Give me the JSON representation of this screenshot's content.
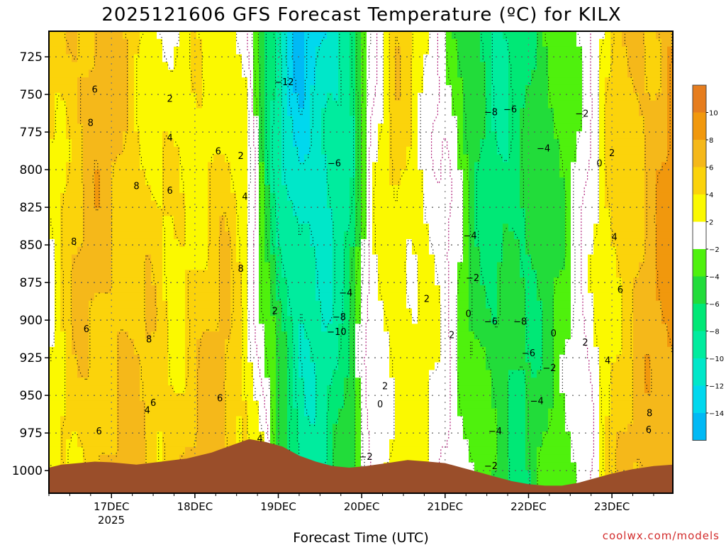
{
  "chart_data": {
    "type": "heatmap",
    "title": "2025121606 GFS Forecast Temperature (ºC) for KILX",
    "xlabel": "Forecast Time (UTC)",
    "ylabel": "",
    "credit": "coolwx.com/models",
    "x_ticks": [
      "17DEC",
      "18DEC",
      "19DEC",
      "20DEC",
      "21DEC",
      "22DEC",
      "23DEC"
    ],
    "x_year": "2025",
    "x_range_days": [
      16.25,
      23.73
    ],
    "y_ticks": [
      725,
      750,
      775,
      800,
      825,
      850,
      875,
      900,
      925,
      950,
      975,
      1000
    ],
    "y_range_hpa": [
      708,
      1015
    ],
    "grid": true,
    "colorbar": {
      "labels": [
        "10",
        "8",
        "6",
        "4",
        "2",
        "−2",
        "−4",
        "−6",
        "−8",
        "−10",
        "−12",
        "−14"
      ],
      "bins": [
        {
          "lo": 10,
          "hi": 12,
          "color": "#e67d1e"
        },
        {
          "lo": 8,
          "hi": 10,
          "color": "#f1980d"
        },
        {
          "lo": 6,
          "hi": 8,
          "color": "#f5b81a"
        },
        {
          "lo": 4,
          "hi": 6,
          "color": "#fbd30b"
        },
        {
          "lo": 2,
          "hi": 4,
          "color": "#fbf900"
        },
        {
          "lo": -2,
          "hi": 2,
          "color": "#ffffff"
        },
        {
          "lo": -4,
          "hi": -2,
          "color": "#4ff10d"
        },
        {
          "lo": -6,
          "hi": -4,
          "color": "#22dc3a"
        },
        {
          "lo": -8,
          "hi": -6,
          "color": "#00e876"
        },
        {
          "lo": -10,
          "hi": -8,
          "color": "#00ec9e"
        },
        {
          "lo": -12,
          "hi": -10,
          "color": "#00e7c9"
        },
        {
          "lo": -14,
          "hi": -12,
          "color": "#00d8ee"
        },
        {
          "lo": -16,
          "hi": -14,
          "color": "#00b9f5"
        }
      ]
    },
    "terrain_color": "#9a4e2a",
    "terrain_hpa": [
      [
        16.25,
        998
      ],
      [
        16.4,
        996
      ],
      [
        16.6,
        995
      ],
      [
        16.8,
        994
      ],
      [
        17.0,
        994.5
      ],
      [
        17.3,
        996
      ],
      [
        17.6,
        994
      ],
      [
        17.9,
        992
      ],
      [
        18.2,
        988
      ],
      [
        18.45,
        983
      ],
      [
        18.65,
        979
      ],
      [
        18.85,
        981
      ],
      [
        19.05,
        984
      ],
      [
        19.25,
        990
      ],
      [
        19.45,
        994
      ],
      [
        19.65,
        997
      ],
      [
        19.85,
        998
      ],
      [
        20.05,
        997
      ],
      [
        20.3,
        995
      ],
      [
        20.55,
        993
      ],
      [
        20.8,
        994
      ],
      [
        21.0,
        995
      ],
      [
        21.2,
        998
      ],
      [
        21.4,
        1001
      ],
      [
        21.6,
        1004
      ],
      [
        21.8,
        1007
      ],
      [
        22.0,
        1009
      ],
      [
        22.2,
        1010
      ],
      [
        22.4,
        1010
      ],
      [
        22.6,
        1008
      ],
      [
        22.8,
        1005
      ],
      [
        23.0,
        1002
      ],
      [
        23.25,
        999
      ],
      [
        23.5,
        997
      ],
      [
        23.73,
        996
      ]
    ],
    "temperature_profiles": [
      {
        "day": 16.25,
        "t725": 4,
        "t1000": 1
      },
      {
        "day": 16.5,
        "t725": 6,
        "t1000": 4
      },
      {
        "day": 16.8,
        "t725": 7,
        "t1000": 6
      },
      {
        "day": 17.1,
        "t725": 6,
        "t1000": 6
      },
      {
        "day": 17.4,
        "t725": 4,
        "t1000": 6
      },
      {
        "day": 17.7,
        "t725": 2,
        "t1000": 5
      },
      {
        "day": 18.0,
        "t725": 3,
        "t1000": 6
      },
      {
        "day": 18.35,
        "t725": 4,
        "t1000": 7
      },
      {
        "day": 18.6,
        "t725": 1,
        "t1000": 5
      },
      {
        "day": 18.8,
        "t725": -6,
        "t1000": 2
      },
      {
        "day": 19.0,
        "t725": -10,
        "t1000": -4
      },
      {
        "day": 19.25,
        "t725": -14,
        "t1000": -8
      },
      {
        "day": 19.55,
        "t725": -12,
        "t1000": -8
      },
      {
        "day": 19.85,
        "t725": -9,
        "t1000": -5
      },
      {
        "day": 20.1,
        "t725": 0,
        "t1000": 1
      },
      {
        "day": 20.4,
        "t725": 5,
        "t1000": 3
      },
      {
        "day": 20.7,
        "t725": 3,
        "t1000": 2
      },
      {
        "day": 21.0,
        "t725": -1,
        "t1000": 1
      },
      {
        "day": 21.3,
        "t725": -6,
        "t1000": -2
      },
      {
        "day": 21.6,
        "t725": -8,
        "t1000": -5
      },
      {
        "day": 21.9,
        "t725": -7,
        "t1000": -6
      },
      {
        "day": 22.2,
        "t725": -5,
        "t1000": -4
      },
      {
        "day": 22.5,
        "t725": -2,
        "t1000": -3
      },
      {
        "day": 22.8,
        "t725": 1,
        "t1000": 2
      },
      {
        "day": 23.0,
        "t725": 4,
        "t1000": 5
      },
      {
        "day": 23.3,
        "t725": 6,
        "t1000": 6
      },
      {
        "day": 23.73,
        "t725": 8,
        "t1000": 9
      }
    ],
    "annotations": [
      {
        "text": "6",
        "day": 16.8,
        "hpa": 747
      },
      {
        "text": "2",
        "day": 17.7,
        "hpa": 753
      },
      {
        "text": "8",
        "day": 16.75,
        "hpa": 769
      },
      {
        "text": "4",
        "day": 17.7,
        "hpa": 779
      },
      {
        "text": "6",
        "day": 18.28,
        "hpa": 788
      },
      {
        "text": "2",
        "day": 18.55,
        "hpa": 791
      },
      {
        "text": "8",
        "day": 17.3,
        "hpa": 811
      },
      {
        "text": "6",
        "day": 17.7,
        "hpa": 814
      },
      {
        "text": "4",
        "day": 18.6,
        "hpa": 818
      },
      {
        "text": "8",
        "day": 16.55,
        "hpa": 848
      },
      {
        "text": "8",
        "day": 18.55,
        "hpa": 866
      },
      {
        "text": "2",
        "day": 18.96,
        "hpa": 894
      },
      {
        "text": "6",
        "day": 16.7,
        "hpa": 906
      },
      {
        "text": "8",
        "day": 17.45,
        "hpa": 913
      },
      {
        "text": "6",
        "day": 17.5,
        "hpa": 955
      },
      {
        "text": "4",
        "day": 17.43,
        "hpa": 960
      },
      {
        "text": "6",
        "day": 18.3,
        "hpa": 952
      },
      {
        "text": "6",
        "day": 16.85,
        "hpa": 974
      },
      {
        "text": "4",
        "day": 18.78,
        "hpa": 979
      },
      {
        "text": "−12",
        "day": 19.07,
        "hpa": 742
      },
      {
        "text": "−6",
        "day": 19.67,
        "hpa": 796
      },
      {
        "text": "−4",
        "day": 19.81,
        "hpa": 882
      },
      {
        "text": "−8",
        "day": 19.73,
        "hpa": 898
      },
      {
        "text": "−10",
        "day": 19.7,
        "hpa": 908
      },
      {
        "text": "−2",
        "day": 20.05,
        "hpa": 991
      },
      {
        "text": "2",
        "day": 20.28,
        "hpa": 944
      },
      {
        "text": "0",
        "day": 20.22,
        "hpa": 956
      },
      {
        "text": "2",
        "day": 20.78,
        "hpa": 886
      },
      {
        "text": "2",
        "day": 21.08,
        "hpa": 910
      },
      {
        "text": "0",
        "day": 21.28,
        "hpa": 896
      },
      {
        "text": "−2",
        "day": 21.33,
        "hpa": 872
      },
      {
        "text": "−4",
        "day": 21.3,
        "hpa": 844
      },
      {
        "text": "−8",
        "day": 21.55,
        "hpa": 762
      },
      {
        "text": "−6",
        "day": 21.78,
        "hpa": 760
      },
      {
        "text": "−4",
        "day": 22.18,
        "hpa": 786
      },
      {
        "text": "−2",
        "day": 22.64,
        "hpa": 763
      },
      {
        "text": "0",
        "day": 22.85,
        "hpa": 796
      },
      {
        "text": "2",
        "day": 23.0,
        "hpa": 789
      },
      {
        "text": "−6",
        "day": 21.55,
        "hpa": 901
      },
      {
        "text": "−8",
        "day": 21.9,
        "hpa": 901
      },
      {
        "text": "−6",
        "day": 22.0,
        "hpa": 922
      },
      {
        "text": "−2",
        "day": 22.25,
        "hpa": 932
      },
      {
        "text": "0",
        "day": 22.3,
        "hpa": 909
      },
      {
        "text": "−4",
        "day": 22.1,
        "hpa": 954
      },
      {
        "text": "−4",
        "day": 21.6,
        "hpa": 974
      },
      {
        "text": "−2",
        "day": 21.55,
        "hpa": 997
      },
      {
        "text": "2",
        "day": 22.68,
        "hpa": 915
      },
      {
        "text": "4",
        "day": 22.95,
        "hpa": 927
      },
      {
        "text": "4",
        "day": 23.03,
        "hpa": 845
      },
      {
        "text": "6",
        "day": 23.1,
        "hpa": 880
      },
      {
        "text": "8",
        "day": 23.45,
        "hpa": 962
      },
      {
        "text": "6",
        "day": 23.44,
        "hpa": 973
      }
    ]
  }
}
